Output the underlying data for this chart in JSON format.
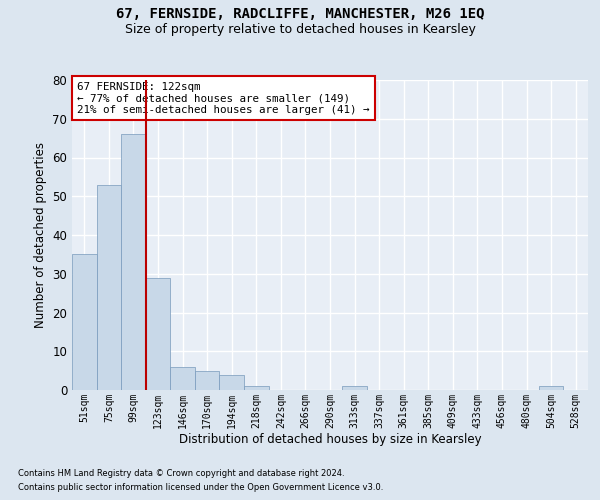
{
  "title": "67, FERNSIDE, RADCLIFFE, MANCHESTER, M26 1EQ",
  "subtitle": "Size of property relative to detached houses in Kearsley",
  "xlabel": "Distribution of detached houses by size in Kearsley",
  "ylabel": "Number of detached properties",
  "footnote1": "Contains HM Land Registry data © Crown copyright and database right 2024.",
  "footnote2": "Contains public sector information licensed under the Open Government Licence v3.0.",
  "categories": [
    "51sqm",
    "75sqm",
    "99sqm",
    "123sqm",
    "146sqm",
    "170sqm",
    "194sqm",
    "218sqm",
    "242sqm",
    "266sqm",
    "290sqm",
    "313sqm",
    "337sqm",
    "361sqm",
    "385sqm",
    "409sqm",
    "433sqm",
    "456sqm",
    "480sqm",
    "504sqm",
    "528sqm"
  ],
  "values": [
    35,
    53,
    66,
    29,
    6,
    5,
    4,
    1,
    0,
    0,
    0,
    1,
    0,
    0,
    0,
    0,
    0,
    0,
    0,
    1,
    0
  ],
  "bar_color": "#c8d8e8",
  "bar_edge_color": "#7799bb",
  "vline_index": 3,
  "vline_color": "#bb0000",
  "annotation_title": "67 FERNSIDE: 122sqm",
  "annotation_line1": "← 77% of detached houses are smaller (149)",
  "annotation_line2": "21% of semi-detached houses are larger (41) →",
  "annotation_box_color": "#cc0000",
  "ylim": [
    0,
    80
  ],
  "yticks": [
    0,
    10,
    20,
    30,
    40,
    50,
    60,
    70,
    80
  ],
  "bg_color": "#dce6f0",
  "plot_bg_color": "#e8eef6",
  "grid_color": "#ffffff",
  "title_fontsize": 10,
  "subtitle_fontsize": 9
}
